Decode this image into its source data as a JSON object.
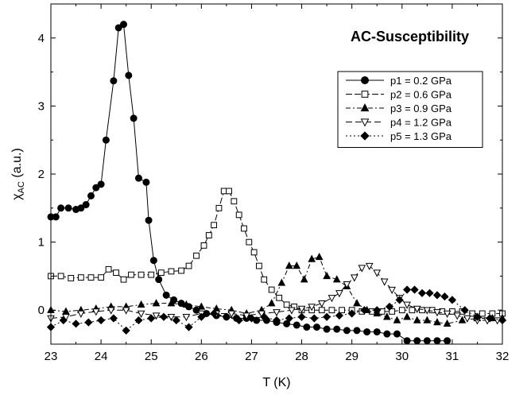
{
  "chart_data": {
    "type": "scatter",
    "title": "AC-Susceptibility",
    "xlabel": "T (K)",
    "ylabel": {
      "main": "χ",
      "sub": "AC",
      "suffix": " (a.u.)"
    },
    "xlim": [
      23,
      32
    ],
    "ylim": [
      -0.5,
      4.5
    ],
    "x_ticks": [
      23,
      24,
      25,
      26,
      27,
      28,
      29,
      30,
      31,
      32
    ],
    "y_ticks": [
      0,
      1,
      2,
      3,
      4
    ],
    "grid": false,
    "legend_position": "right",
    "series": [
      {
        "name": "p1 = 0.2 GPa",
        "marker": "circle-filled",
        "dash": "",
        "x": [
          23.0,
          23.1,
          23.2,
          23.35,
          23.5,
          23.6,
          23.7,
          23.8,
          23.9,
          24.0,
          24.1,
          24.25,
          24.35,
          24.45,
          24.55,
          24.65,
          24.75,
          24.9,
          24.95,
          25.05,
          25.15,
          25.3,
          25.45,
          25.6,
          25.75,
          25.9,
          26.1,
          26.3,
          26.5,
          26.7,
          26.9,
          27.1,
          27.3,
          27.5,
          27.7,
          27.9,
          28.1,
          28.3,
          28.5,
          28.7,
          28.9,
          29.1,
          29.3,
          29.5,
          29.7,
          29.9,
          30.1,
          30.3,
          30.5,
          30.7,
          30.9
        ],
        "y": [
          1.37,
          1.37,
          1.5,
          1.5,
          1.48,
          1.5,
          1.55,
          1.68,
          1.8,
          1.85,
          2.5,
          3.37,
          4.15,
          4.2,
          3.45,
          2.82,
          1.94,
          1.88,
          1.32,
          0.73,
          0.45,
          0.22,
          0.15,
          0.1,
          0.05,
          0.0,
          -0.05,
          -0.08,
          -0.1,
          -0.12,
          -0.12,
          -0.15,
          -0.15,
          -0.18,
          -0.2,
          -0.22,
          -0.25,
          -0.25,
          -0.28,
          -0.28,
          -0.3,
          -0.3,
          -0.32,
          -0.32,
          -0.35,
          -0.35,
          -0.45,
          -0.45,
          -0.45,
          -0.45,
          -0.45
        ]
      },
      {
        "name": "p2 = 0.6 GPa",
        "marker": "square-open",
        "dash": "8,3",
        "x": [
          23.0,
          23.2,
          23.4,
          23.6,
          23.8,
          24.0,
          24.15,
          24.3,
          24.45,
          24.6,
          24.8,
          25.0,
          25.2,
          25.4,
          25.6,
          25.75,
          25.9,
          26.05,
          26.15,
          26.25,
          26.35,
          26.45,
          26.55,
          26.65,
          26.75,
          26.85,
          26.95,
          27.05,
          27.15,
          27.25,
          27.4,
          27.55,
          27.7,
          27.85,
          28.0,
          28.2,
          28.4,
          28.6,
          28.8,
          29.0,
          29.2,
          29.4,
          29.6,
          29.8,
          30.0,
          30.2,
          30.4,
          30.6,
          30.8,
          31.0,
          31.2,
          31.4,
          31.6,
          31.8,
          32.0
        ],
        "y": [
          0.5,
          0.5,
          0.47,
          0.48,
          0.48,
          0.48,
          0.6,
          0.55,
          0.45,
          0.52,
          0.52,
          0.52,
          0.55,
          0.57,
          0.58,
          0.65,
          0.8,
          0.95,
          1.1,
          1.25,
          1.5,
          1.75,
          1.75,
          1.6,
          1.4,
          1.2,
          1.0,
          0.85,
          0.65,
          0.45,
          0.3,
          0.18,
          0.08,
          0.05,
          0.0,
          0.0,
          0.0,
          0.0,
          0.0,
          0.0,
          -0.02,
          -0.02,
          -0.02,
          -0.02,
          0.0,
          0.0,
          0.0,
          0.0,
          -0.02,
          -0.02,
          -0.02,
          -0.05,
          -0.05,
          -0.05,
          -0.05
        ]
      },
      {
        "name": "p3 = 0.9 GPa",
        "marker": "triangle-up-filled",
        "dash": "6,3,2,3",
        "x": [
          23.0,
          23.3,
          23.6,
          23.9,
          24.2,
          24.5,
          24.8,
          25.1,
          25.4,
          25.7,
          26.0,
          26.3,
          26.6,
          26.9,
          27.2,
          27.4,
          27.6,
          27.75,
          27.9,
          28.05,
          28.2,
          28.35,
          28.5,
          28.7,
          28.9,
          29.1,
          29.3,
          29.5,
          29.7,
          29.9,
          30.1,
          30.3,
          30.5,
          30.7,
          30.9,
          31.2,
          31.5,
          31.8,
          32.0
        ],
        "y": [
          0.0,
          -0.02,
          0.0,
          0.02,
          0.05,
          0.05,
          0.08,
          0.1,
          0.1,
          0.08,
          0.05,
          0.02,
          0.0,
          -0.05,
          0.0,
          0.1,
          0.4,
          0.65,
          0.65,
          0.45,
          0.75,
          0.78,
          0.5,
          0.45,
          0.35,
          0.1,
          0.0,
          -0.05,
          -0.1,
          -0.15,
          -0.1,
          -0.15,
          -0.15,
          -0.18,
          -0.2,
          -0.15,
          -0.12,
          -0.12,
          -0.12
        ]
      },
      {
        "name": "p4 = 1.2 GPa",
        "marker": "triangle-down-open",
        "dash": "8,4",
        "x": [
          23.0,
          23.3,
          23.6,
          23.9,
          24.2,
          24.5,
          24.8,
          25.1,
          25.4,
          25.7,
          26.0,
          26.3,
          26.6,
          26.9,
          27.2,
          27.5,
          27.8,
          28.0,
          28.2,
          28.4,
          28.6,
          28.75,
          28.9,
          29.05,
          29.2,
          29.35,
          29.5,
          29.65,
          29.8,
          29.95,
          30.1,
          30.3,
          30.5,
          30.7,
          30.9,
          31.1,
          31.3,
          31.5,
          31.7,
          31.9
        ],
        "y": [
          -0.12,
          -0.1,
          -0.05,
          -0.02,
          0.0,
          0.0,
          -0.05,
          -0.08,
          -0.1,
          -0.1,
          -0.05,
          -0.05,
          -0.05,
          -0.08,
          -0.05,
          -0.03,
          0.0,
          0.02,
          0.05,
          0.1,
          0.18,
          0.25,
          0.38,
          0.48,
          0.62,
          0.65,
          0.55,
          0.42,
          0.3,
          0.18,
          0.08,
          0.02,
          0.0,
          -0.03,
          -0.05,
          -0.08,
          -0.12,
          -0.15,
          -0.15,
          -0.15
        ]
      },
      {
        "name": "p5 = 1.3 GPa",
        "marker": "diamond-filled",
        "dash": "2,3",
        "x": [
          23.0,
          23.25,
          23.5,
          23.75,
          24.0,
          24.25,
          24.5,
          24.75,
          25.0,
          25.25,
          25.5,
          25.75,
          26.0,
          26.25,
          26.5,
          26.75,
          27.0,
          27.25,
          27.5,
          27.75,
          28.0,
          28.25,
          28.5,
          28.75,
          29.0,
          29.25,
          29.5,
          29.75,
          29.95,
          30.1,
          30.25,
          30.4,
          30.55,
          30.7,
          30.85,
          31.0,
          31.25,
          31.5,
          31.75,
          32.0
        ],
        "y": [
          -0.25,
          -0.15,
          -0.2,
          -0.18,
          -0.15,
          -0.12,
          -0.3,
          -0.15,
          -0.12,
          -0.1,
          -0.15,
          -0.25,
          -0.1,
          -0.05,
          -0.1,
          -0.15,
          -0.12,
          -0.1,
          -0.15,
          -0.12,
          -0.1,
          -0.12,
          -0.1,
          -0.08,
          -0.05,
          0.0,
          0.0,
          0.05,
          0.15,
          0.3,
          0.3,
          0.25,
          0.25,
          0.22,
          0.2,
          0.15,
          0.0,
          -0.1,
          -0.12,
          -0.15
        ]
      }
    ]
  }
}
